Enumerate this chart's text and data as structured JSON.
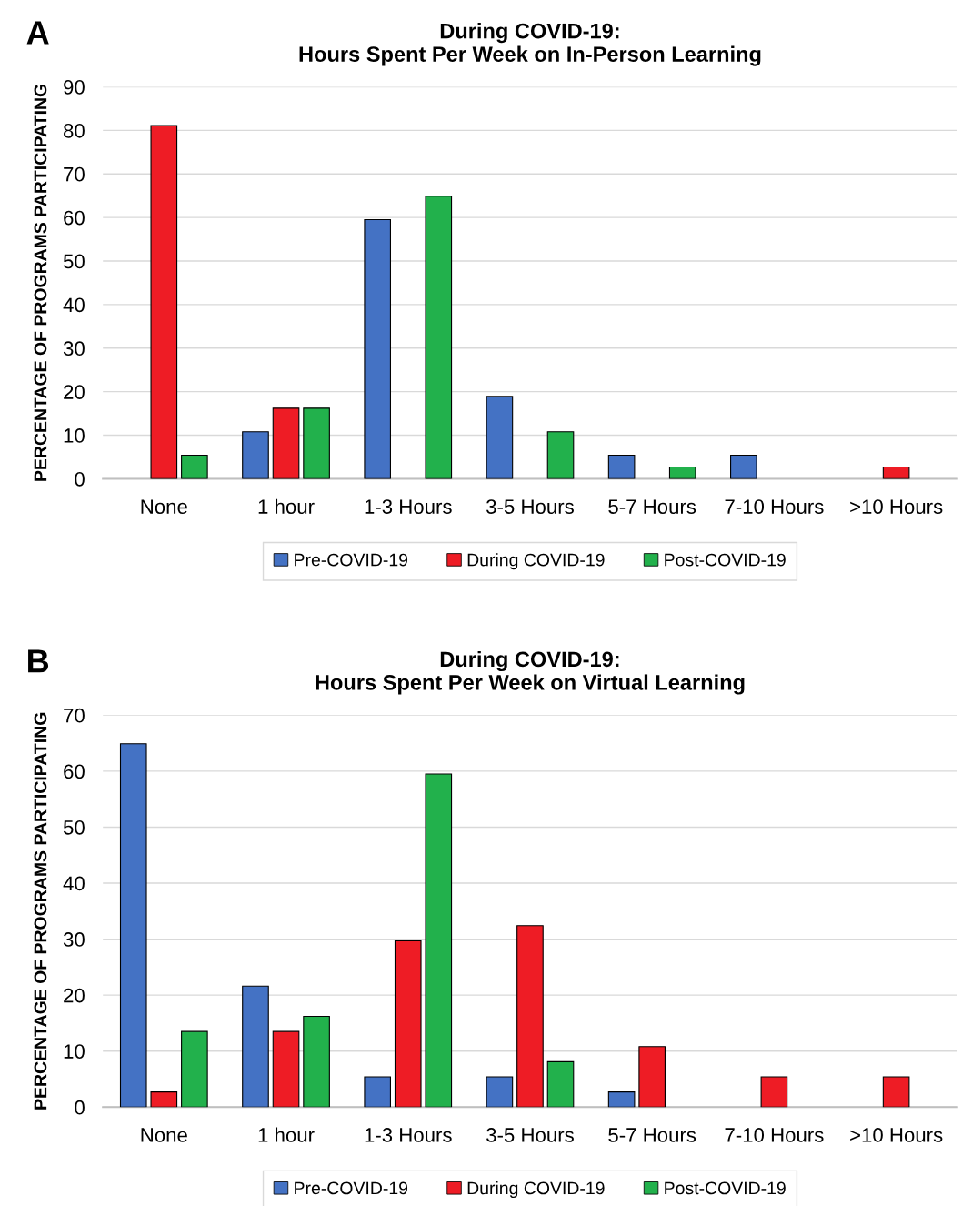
{
  "chart_data": [
    {
      "type": "bar",
      "title": "During COVID-19:\nHours Spent Per Week on In-Person Learning",
      "ylabel": "PERCENTAGE OF PROGRAMS PARTICIPATING",
      "annotations": [
        "A"
      ],
      "categories": [
        "None",
        "1 hour",
        "1-3 Hours",
        "3-5 Hours",
        "5-7 Hours",
        "7-10 Hours",
        ">10 Hours"
      ],
      "series": [
        {
          "name": "Pre-COVID-19",
          "color": "#4472c4",
          "values": [
            0,
            10.8,
            59.5,
            18.9,
            5.4,
            5.4,
            0
          ]
        },
        {
          "name": "During COVID-19",
          "color": "#ee1c25",
          "values": [
            81.1,
            16.2,
            0,
            0,
            0,
            0,
            2.7
          ]
        },
        {
          "name": "Post-COVID-19",
          "color": "#22b14c",
          "values": [
            5.4,
            16.2,
            64.9,
            10.8,
            2.7,
            0,
            0
          ]
        }
      ],
      "ylim": [
        0,
        90
      ],
      "yticks": [
        0,
        10,
        20,
        30,
        40,
        50,
        60,
        70,
        80,
        90
      ],
      "grid": "y",
      "legend": "bottom"
    },
    {
      "type": "bar",
      "title": "During COVID-19:\nHours Spent Per Week on Virtual Learning",
      "ylabel": "PERCENTAGE OF PROGRAMS PARTICIPATING",
      "annotations": [
        "B"
      ],
      "categories": [
        "None",
        "1 hour",
        "1-3 Hours",
        "3-5 Hours",
        "5-7 Hours",
        "7-10 Hours",
        ">10 Hours"
      ],
      "series": [
        {
          "name": "Pre-COVID-19",
          "color": "#4472c4",
          "values": [
            64.9,
            21.6,
            5.4,
            5.4,
            2.7,
            0,
            0
          ]
        },
        {
          "name": "During COVID-19",
          "color": "#ee1c25",
          "values": [
            2.7,
            13.5,
            29.7,
            32.4,
            10.8,
            5.4,
            5.4
          ]
        },
        {
          "name": "Post-COVID-19",
          "color": "#22b14c",
          "values": [
            13.5,
            16.2,
            59.5,
            8.1,
            0,
            0,
            0
          ]
        }
      ],
      "ylim": [
        0,
        70
      ],
      "yticks": [
        0,
        10,
        20,
        30,
        40,
        50,
        60,
        70
      ],
      "grid": "y",
      "legend": "bottom"
    }
  ]
}
